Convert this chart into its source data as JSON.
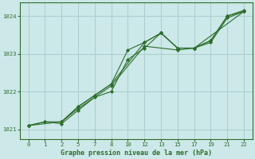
{
  "background_color": "#cce8e8",
  "grid_color": "#aacece",
  "line_color": "#2d6e2d",
  "marker_color": "#2d6e2d",
  "xlabel": "Graphe pression niveau de la mer (hPa)",
  "xlim": [
    -0.5,
    13.5
  ],
  "ylim": [
    1020.75,
    1024.35
  ],
  "xtick_positions": [
    0,
    1,
    2,
    3,
    4,
    5,
    6,
    7,
    8,
    9,
    10,
    11,
    12,
    13
  ],
  "xtick_labels": [
    "0",
    "1",
    "2",
    "5",
    "7",
    "8",
    "10",
    "12",
    "13",
    "15",
    "17",
    "19",
    "21",
    "22"
  ],
  "yticks": [
    1021,
    1022,
    1023,
    1024
  ],
  "series": [
    {
      "xi": [
        0,
        1,
        2,
        3,
        4,
        5,
        6,
        7,
        8,
        9,
        10,
        11,
        12,
        13
      ],
      "y": [
        1021.1,
        1021.2,
        1021.2,
        1021.6,
        1021.9,
        1022.2,
        1023.1,
        1023.3,
        1023.55,
        1023.15,
        1023.15,
        1023.35,
        1024.0,
        1024.12
      ]
    },
    {
      "xi": [
        0,
        1,
        2,
        3,
        4,
        5,
        6,
        7,
        8,
        9,
        10,
        11,
        12,
        13
      ],
      "y": [
        1021.1,
        1021.2,
        1021.15,
        1021.5,
        1021.85,
        1022.0,
        1022.85,
        1023.15,
        1023.55,
        1023.15,
        1023.15,
        1023.3,
        1023.95,
        1024.12
      ]
    },
    {
      "xi": [
        2,
        3,
        5,
        7,
        9,
        10,
        11,
        12,
        13
      ],
      "y": [
        1021.2,
        1021.55,
        1022.15,
        1023.2,
        1023.1,
        1023.15,
        1023.35,
        1024.0,
        1024.15
      ]
    },
    {
      "xi": [
        0,
        2,
        3,
        5,
        7,
        8,
        9,
        10,
        13
      ],
      "y": [
        1021.1,
        1021.2,
        1021.6,
        1022.2,
        1023.3,
        1023.55,
        1023.15,
        1023.15,
        1024.12
      ]
    }
  ]
}
